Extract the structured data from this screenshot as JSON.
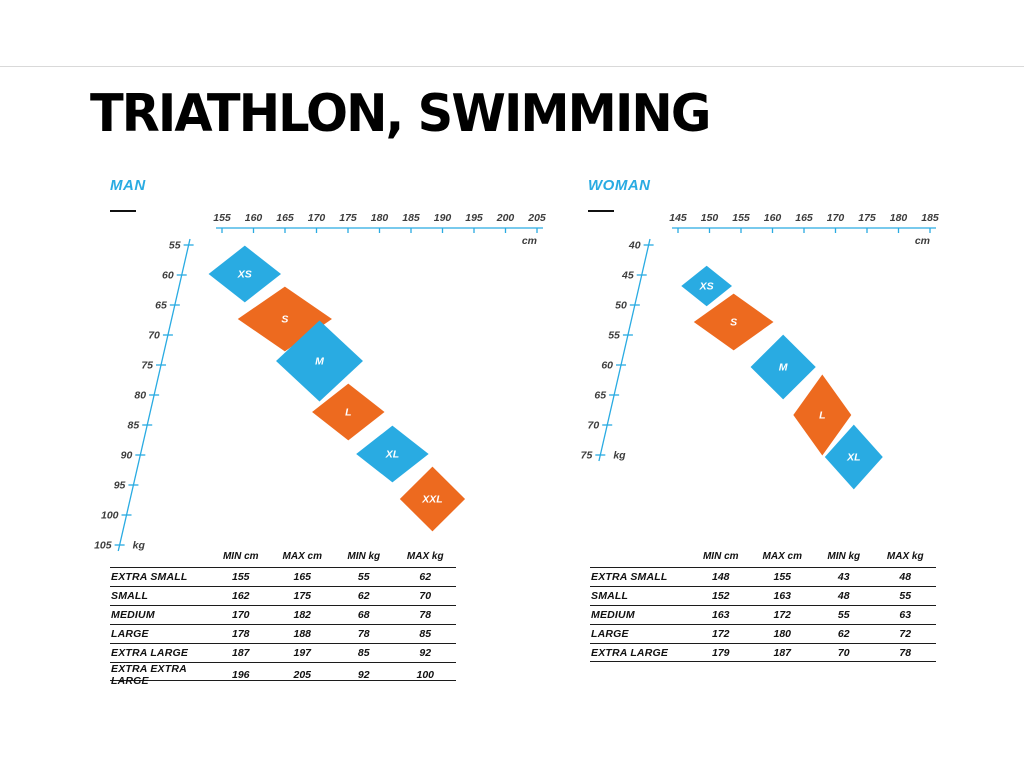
{
  "page": {
    "title": "TRIATHLON, SWIMMING"
  },
  "colors": {
    "blue": "#29ABE2",
    "orange": "#ED6A1F",
    "axis": "#29ABE2"
  },
  "chart_data": [
    {
      "type": "scatter",
      "id": "man",
      "label": "MAN",
      "unit_x": "cm",
      "unit_y": "kg",
      "x_ticks": [
        155,
        160,
        165,
        170,
        175,
        180,
        185,
        190,
        195,
        200,
        205
      ],
      "y_ticks": [
        55,
        60,
        65,
        70,
        75,
        80,
        85,
        90,
        95,
        100,
        105
      ],
      "sizes": [
        {
          "code": "XS",
          "name": "EXTRA SMALL",
          "min_cm": 155,
          "max_cm": 165,
          "min_kg": 55,
          "max_kg": 62,
          "color": "blue"
        },
        {
          "code": "S",
          "name": "SMALL",
          "min_cm": 162,
          "max_cm": 175,
          "min_kg": 62,
          "max_kg": 70,
          "color": "orange"
        },
        {
          "code": "M",
          "name": "MEDIUM",
          "min_cm": 170,
          "max_cm": 182,
          "min_kg": 68,
          "max_kg": 78,
          "color": "blue"
        },
        {
          "code": "L",
          "name": "LARGE",
          "min_cm": 178,
          "max_cm": 188,
          "min_kg": 78,
          "max_kg": 85,
          "color": "orange"
        },
        {
          "code": "XL",
          "name": "EXTRA LARGE",
          "min_cm": 187,
          "max_cm": 197,
          "min_kg": 85,
          "max_kg": 92,
          "color": "blue"
        },
        {
          "code": "XXL",
          "name": "EXTRA EXTRA LARGE",
          "min_cm": 196,
          "max_cm": 205,
          "min_kg": 92,
          "max_kg": 100,
          "color": "orange"
        }
      ],
      "table": {
        "headers": [
          "MIN cm",
          "MAX cm",
          "MIN kg",
          "MAX kg"
        ]
      }
    },
    {
      "type": "scatter",
      "id": "woman",
      "label": "WOMAN",
      "unit_x": "cm",
      "unit_y": "kg",
      "x_ticks": [
        145,
        150,
        155,
        160,
        165,
        170,
        175,
        180,
        185
      ],
      "y_ticks": [
        40,
        45,
        50,
        55,
        60,
        65,
        70,
        75
      ],
      "sizes": [
        {
          "code": "XS",
          "name": "EXTRA SMALL",
          "min_cm": 148,
          "max_cm": 155,
          "min_kg": 43,
          "max_kg": 48,
          "color": "blue"
        },
        {
          "code": "S",
          "name": "SMALL",
          "min_cm": 152,
          "max_cm": 163,
          "min_kg": 48,
          "max_kg": 55,
          "color": "orange"
        },
        {
          "code": "M",
          "name": "MEDIUM",
          "min_cm": 163,
          "max_cm": 172,
          "min_kg": 55,
          "max_kg": 63,
          "color": "blue"
        },
        {
          "code": "L",
          "name": "LARGE",
          "min_cm": 172,
          "max_cm": 180,
          "min_kg": 62,
          "max_kg": 72,
          "color": "orange"
        },
        {
          "code": "XL",
          "name": "EXTRA LARGE",
          "min_cm": 179,
          "max_cm": 187,
          "min_kg": 70,
          "max_kg": 78,
          "color": "blue"
        }
      ],
      "table": {
        "headers": [
          "MIN cm",
          "MAX cm",
          "MIN kg",
          "MAX kg"
        ]
      }
    }
  ]
}
